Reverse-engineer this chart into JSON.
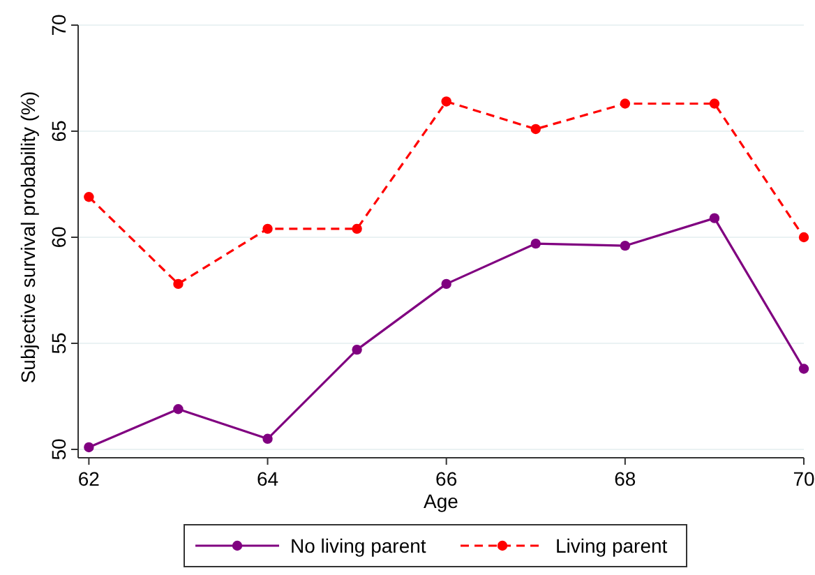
{
  "chart_data": {
    "type": "line",
    "xlabel": "Age",
    "ylabel": "Subjective survival probability (%)",
    "x": [
      62,
      63,
      64,
      65,
      66,
      67,
      68,
      69,
      70
    ],
    "series": [
      {
        "name": "No living parent",
        "color": "#800080",
        "line_style": "solid",
        "values": [
          50.1,
          51.9,
          50.5,
          54.7,
          57.8,
          59.7,
          59.6,
          60.9,
          53.8
        ]
      },
      {
        "name": "Living parent",
        "color": "#ff0000",
        "line_style": "dashed",
        "values": [
          61.9,
          57.8,
          60.4,
          60.4,
          66.4,
          65.1,
          66.3,
          66.3,
          60.0
        ]
      }
    ],
    "xlim": [
      61.88,
      70
    ],
    "xticks": [
      62,
      64,
      66,
      68,
      70
    ],
    "ylim": [
      50,
      70
    ],
    "yticks": [
      50,
      55,
      60,
      65,
      70
    ],
    "grid": "y",
    "legend": "bottom",
    "marker": "circle"
  }
}
